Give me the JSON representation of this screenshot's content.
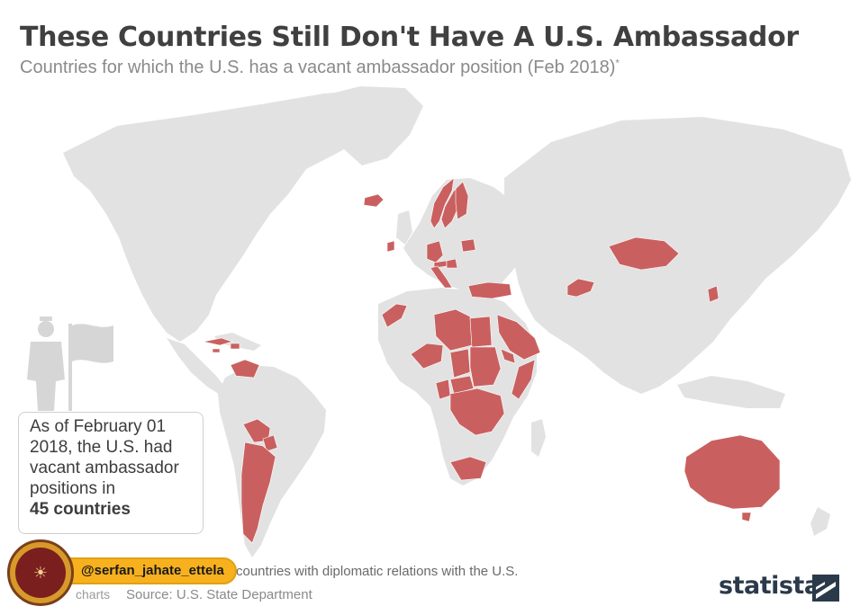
{
  "header": {
    "title": "These Countries Still Don't Have A U.S. Ambassador",
    "subtitle": "Countries for which the U.S. has a vacant ambassador position (Feb 2018)",
    "subtitle_marker": "*"
  },
  "callout": {
    "text": "As of February 01 2018, the U.S. had vacant ambassador positions in",
    "highlight": "45 countries"
  },
  "footer": {
    "footnote": "countries with diplomatic relations with the U.S.",
    "credit": "charts",
    "source": "Source: U.S. State Department",
    "brand": "statista"
  },
  "watermark": {
    "handle": "@serfan_jahate_ettela"
  },
  "colors": {
    "vacant": "#c9605f",
    "land": "#e2e2e2",
    "water": "#ffffff",
    "title": "#404040",
    "subtitle": "#8a8a8a"
  },
  "map": {
    "highlighted_regions": [
      "Iceland",
      "Norway",
      "Sweden",
      "Finland",
      "Ireland",
      "Germany",
      "Belarus",
      "Austria",
      "Hungary",
      "Italy",
      "Turkey",
      "Georgia",
      "Armenia",
      "Azerbaijan",
      "Mongolia",
      "South Korea",
      "Morocco",
      "Libya",
      "Egypt",
      "Jordan",
      "Saudi Arabia",
      "Qatar",
      "Mali",
      "Chad",
      "Sudan",
      "South Sudan",
      "Eritrea",
      "Djibouti",
      "Somalia",
      "Cameroon",
      "Central African Republic",
      "Democratic Republic of the Congo",
      "Uganda",
      "Tanzania",
      "South Africa",
      "Cuba",
      "Haiti",
      "Jamaica",
      "Venezuela",
      "Bolivia",
      "Paraguay",
      "Uruguay",
      "Argentina",
      "Australia",
      "Singapore"
    ]
  }
}
